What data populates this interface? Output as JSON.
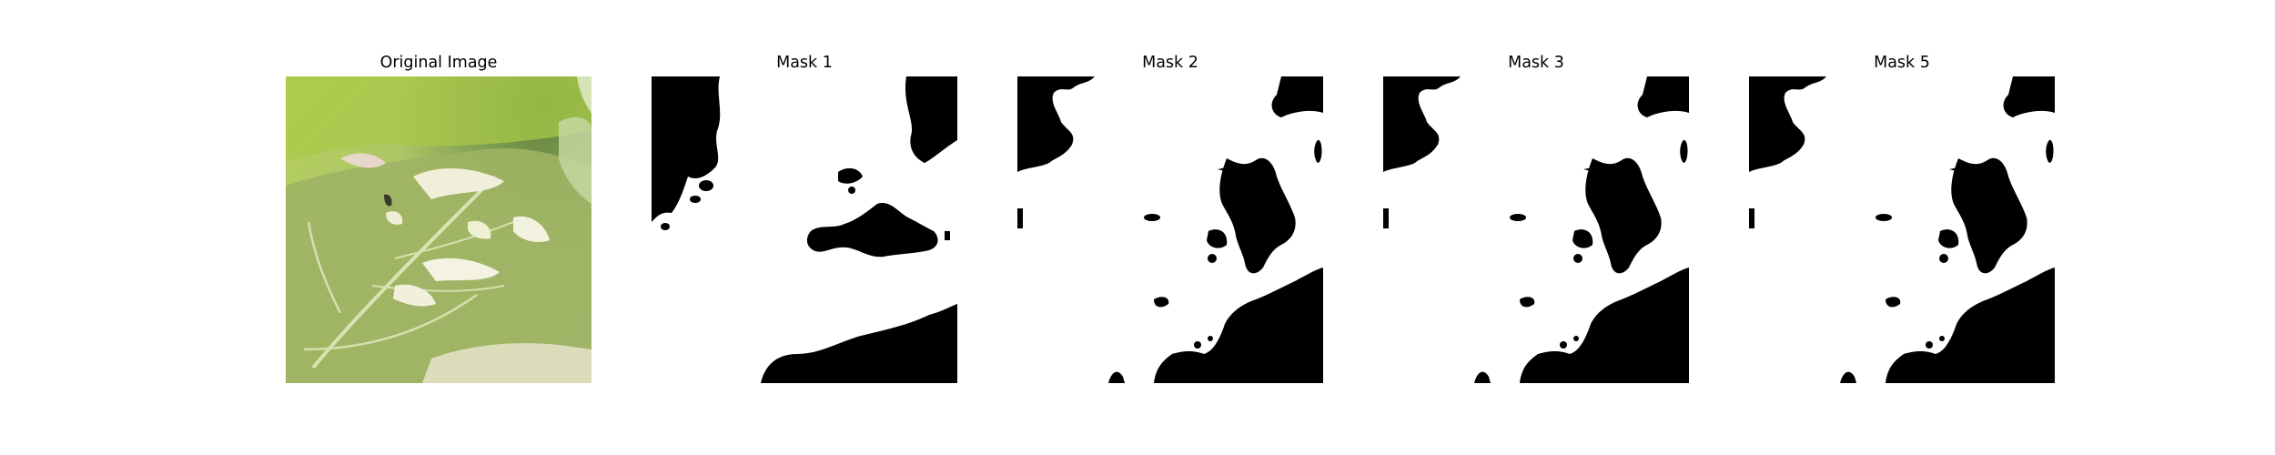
{
  "figure": {
    "panels": [
      {
        "title": "Original Image",
        "kind": "photo",
        "subject": "leaf-photo"
      },
      {
        "title": "Mask 1",
        "kind": "binary-mask"
      },
      {
        "title": "Mask 2",
        "kind": "binary-mask"
      },
      {
        "title": "Mask 3",
        "kind": "binary-mask"
      },
      {
        "title": "Mask 5",
        "kind": "binary-mask"
      }
    ],
    "colors": {
      "mask_foreground": "#ffffff",
      "mask_background": "#000000",
      "leaf_light": "#c9d98a",
      "leaf_mid": "#8fae4a",
      "leaf_dark": "#5f7f2c",
      "spot": "#f1efd9"
    }
  }
}
